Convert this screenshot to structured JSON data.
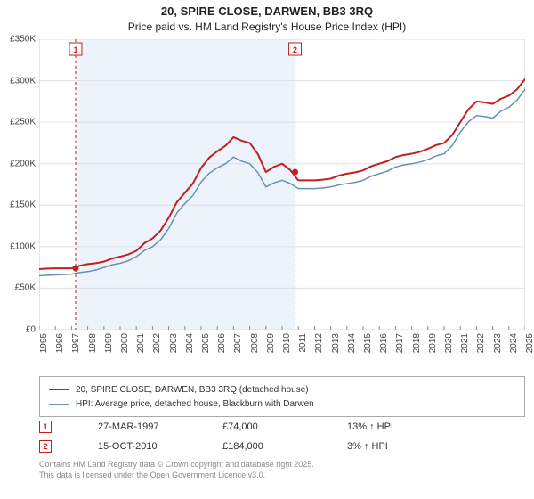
{
  "title": {
    "line1": "20, SPIRE CLOSE, DARWEN, BB3 3RQ",
    "line2": "Price paid vs. HM Land Registry's House Price Index (HPI)"
  },
  "chart": {
    "type": "line",
    "background_color": "#ffffff",
    "plot_border_color": "#cccccc",
    "grid_color": "#e0e0e0",
    "x_years": [
      1995,
      1996,
      1997,
      1998,
      1999,
      2000,
      2001,
      2002,
      2003,
      2004,
      2005,
      2006,
      2007,
      2008,
      2009,
      2010,
      2011,
      2012,
      2013,
      2014,
      2015,
      2016,
      2017,
      2018,
      2019,
      2020,
      2021,
      2022,
      2023,
      2024,
      2025
    ],
    "ylim": [
      0,
      350000
    ],
    "ytick_step": 50000,
    "ytick_labels": [
      "£0",
      "£50K",
      "£100K",
      "£150K",
      "£200K",
      "£250K",
      "£300K",
      "£350K"
    ],
    "highlight_band": {
      "x_start": 1997.25,
      "x_end": 2010.8,
      "color": "#dce9f5",
      "opacity": 0.55
    },
    "marker_lines": [
      {
        "id": "1",
        "x": 1997.25,
        "color": "#c21f1f"
      },
      {
        "id": "2",
        "x": 2010.8,
        "color": "#c21f1f"
      }
    ],
    "series": [
      {
        "name": "price_paid",
        "color": "#c21f1f",
        "line_width": 2,
        "data_y_by_year": {
          "1995": 73000,
          "1996": 74000,
          "1997": 74000,
          "1998": 79000,
          "1999": 82000,
          "2000": 88000,
          "2001": 95000,
          "2002": 110000,
          "2003": 135000,
          "2004": 165000,
          "2005": 195000,
          "2006": 215000,
          "2007": 232000,
          "2008": 225000,
          "2009": 190000,
          "2010": 200000,
          "2011": 180000,
          "2012": 180000,
          "2013": 182000,
          "2014": 188000,
          "2015": 192000,
          "2016": 200000,
          "2017": 208000,
          "2018": 212000,
          "2019": 218000,
          "2020": 225000,
          "2021": 250000,
          "2022": 275000,
          "2023": 272000,
          "2024": 282000,
          "2025": 302000
        }
      },
      {
        "name": "hpi",
        "color": "#6a8fb8",
        "line_width": 1.5,
        "data_y_by_year": {
          "1995": 65000,
          "1996": 66000,
          "1997": 67000,
          "1998": 70000,
          "1999": 75000,
          "2000": 80000,
          "2001": 88000,
          "2002": 100000,
          "2003": 122000,
          "2004": 152000,
          "2005": 178000,
          "2006": 195000,
          "2007": 208000,
          "2008": 200000,
          "2009": 172000,
          "2010": 180000,
          "2011": 170000,
          "2012": 170000,
          "2013": 172000,
          "2014": 176000,
          "2015": 180000,
          "2016": 188000,
          "2017": 196000,
          "2018": 200000,
          "2019": 205000,
          "2020": 212000,
          "2021": 238000,
          "2022": 258000,
          "2023": 255000,
          "2024": 268000,
          "2025": 290000
        }
      }
    ]
  },
  "legend": {
    "items": [
      {
        "color": "#c21f1f",
        "width": 2,
        "label": "20, SPIRE CLOSE, DARWEN, BB3 3RQ (detached house)"
      },
      {
        "color": "#6a8fb8",
        "width": 1.5,
        "label": "HPI: Average price, detached house, Blackburn with Darwen"
      }
    ]
  },
  "markers_table": [
    {
      "id": "1",
      "color": "#c21f1f",
      "date": "27-MAR-1997",
      "price": "£74,000",
      "delta": "13% ↑ HPI"
    },
    {
      "id": "2",
      "color": "#c21f1f",
      "date": "15-OCT-2010",
      "price": "£184,000",
      "delta": "3% ↑ HPI"
    }
  ],
  "footer": {
    "line1": "Contains HM Land Registry data © Crown copyright and database right 2025.",
    "line2": "This data is licensed under the Open Government Licence v3.0."
  },
  "styling": {
    "title_fontsize": 13,
    "axis_label_fontsize": 10,
    "legend_fontsize": 10,
    "footer_fontsize": 9,
    "footer_color": "#888888"
  }
}
